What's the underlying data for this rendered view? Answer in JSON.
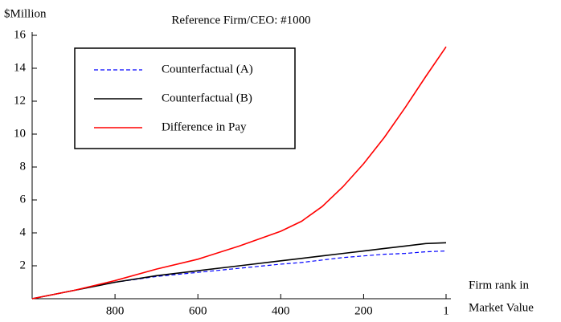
{
  "chart_data": {
    "type": "line",
    "title": "Reference Firm/CEO: #1000",
    "y_label": "$Million",
    "x_label": [
      "Firm rank in",
      "Market Value"
    ],
    "x": [
      1000,
      900,
      800,
      700,
      600,
      500,
      400,
      350,
      300,
      250,
      200,
      150,
      100,
      50,
      1
    ],
    "series": [
      {
        "name": "Counterfactual (A)",
        "color": "#0000ff",
        "dashed": true,
        "values": [
          0,
          0.5,
          1.0,
          1.35,
          1.6,
          1.85,
          2.1,
          2.2,
          2.35,
          2.5,
          2.6,
          2.7,
          2.75,
          2.85,
          2.9
        ]
      },
      {
        "name": "Counterfactual (B)",
        "color": "#000000",
        "dashed": false,
        "values": [
          0,
          0.5,
          1.0,
          1.4,
          1.7,
          2.0,
          2.3,
          2.45,
          2.6,
          2.75,
          2.9,
          3.05,
          3.2,
          3.35,
          3.4
        ]
      },
      {
        "name": "Difference in Pay",
        "color": "#ff0000",
        "dashed": false,
        "values": [
          0,
          0.5,
          1.1,
          1.8,
          2.4,
          3.2,
          4.1,
          4.7,
          5.6,
          6.8,
          8.2,
          9.8,
          11.6,
          13.5,
          15.3
        ]
      }
    ],
    "xlim": [
      1000,
      1
    ],
    "xticks": [
      800,
      600,
      400,
      200,
      1
    ],
    "ylim": [
      0,
      16
    ],
    "yticks": [
      2,
      4,
      6,
      8,
      10,
      12,
      14,
      16
    ],
    "legend": "upper left"
  }
}
